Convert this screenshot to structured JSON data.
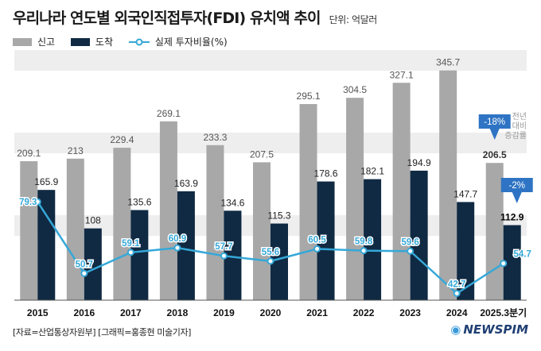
{
  "title": "우리나라 연도별 외국인직접투자(FDI) 유치액 추이",
  "unit": "단위: 억달러",
  "legend": {
    "reported": "신고",
    "arrived": "도착",
    "ratio": "실제 투자비율(%)"
  },
  "source": "[자료=산업통상자원부] [그래픽=홍종현 미술기자]",
  "brand": "NEWSPIM",
  "brand_mark": "◉",
  "colors": {
    "reported": "#a8a8a8",
    "arrived": "#102a43",
    "line": "#35a8d8",
    "band": "#eeeeee",
    "badge": "#2f74c4",
    "annotation": "#999999"
  },
  "chart_data": {
    "type": "bar",
    "categories": [
      "2015",
      "2016",
      "2017",
      "2018",
      "2019",
      "2020",
      "2021",
      "2022",
      "2023",
      "2024",
      "2025.3분기"
    ],
    "series": [
      {
        "name": "신고",
        "values": [
          209.1,
          213,
          229.4,
          269.1,
          233.3,
          207.5,
          295.1,
          304.5,
          327.1,
          345.7,
          206.5
        ]
      },
      {
        "name": "도착",
        "values": [
          165.9,
          108,
          135.6,
          163.9,
          134.6,
          115.3,
          178.6,
          182.1,
          194.9,
          147.7,
          112.9
        ]
      },
      {
        "name": "실제 투자비율(%)",
        "type": "line",
        "values": [
          79.3,
          50.7,
          59.1,
          60.9,
          57.7,
          55.6,
          60.5,
          59.8,
          59.6,
          42.7,
          54.7
        ]
      }
    ],
    "ylim": [
      0,
      380
    ],
    "annotations": {
      "reported_change": "-18%",
      "arrived_change": "-2%",
      "note": [
        "전년",
        "대비",
        "증감률"
      ]
    }
  }
}
